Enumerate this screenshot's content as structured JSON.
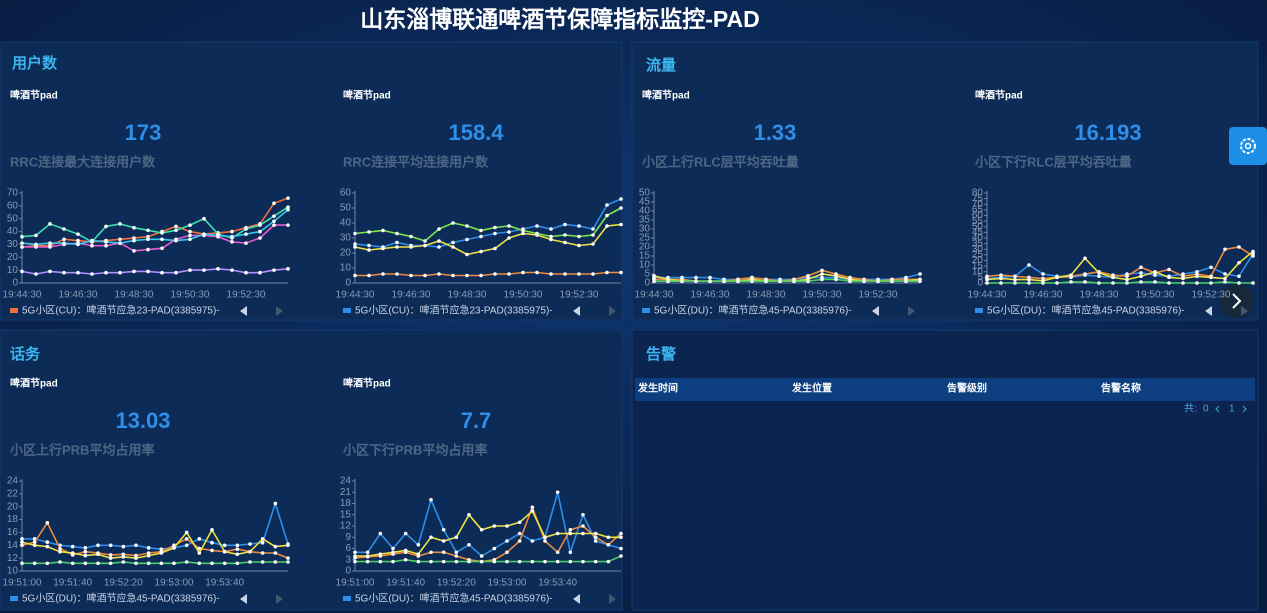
{
  "title": "山东淄博联通啤酒节保障指标监控-PAD",
  "sections": [
    "用户数",
    "流量",
    "话务",
    "告警"
  ],
  "alarm": {
    "columns": [
      "发生时间",
      "发生位置",
      "告警级别",
      "告警名称"
    ],
    "pager": {
      "total_label": "共:",
      "total": 0,
      "page": 1
    }
  },
  "chart_data": [
    {
      "type": "line",
      "subtitle": "啤酒节pad",
      "headline": 173,
      "title": "RRC连接最大连接用户数",
      "categories": [
        "19:44:30",
        null,
        null,
        null,
        "19:46:30",
        null,
        null,
        null,
        "19:48:30",
        null,
        null,
        null,
        "19:50:30",
        null,
        null,
        null,
        "19:52:30",
        null,
        null,
        null
      ],
      "ylim": [
        0,
        70
      ],
      "yticks": [
        0,
        10,
        20,
        30,
        40,
        50,
        60,
        70
      ],
      "series": [
        {
          "name": "5G小区(CU)：啤酒节应急23-PAD(3385975)-",
          "color": "#f0703a",
          "values": [
            28,
            29,
            29,
            34,
            33,
            32,
            33,
            34,
            35,
            36,
            40,
            44,
            40,
            38,
            39,
            40,
            43,
            46,
            62,
            66
          ]
        },
        {
          "color": "#3fe0b0",
          "values": [
            36,
            37,
            46,
            42,
            38,
            32,
            44,
            46,
            43,
            41,
            39,
            41,
            45,
            50,
            38,
            35,
            42,
            45,
            52,
            59
          ]
        },
        {
          "color": "#e85ad0",
          "values": [
            28,
            28,
            28,
            30,
            31,
            29,
            29,
            31,
            25,
            26,
            27,
            34,
            37,
            37,
            36,
            32,
            31,
            35,
            45,
            45
          ]
        },
        {
          "color": "#3cc8e8",
          "values": [
            31,
            30,
            31,
            31,
            30,
            33,
            32,
            31,
            33,
            34,
            34,
            33,
            34,
            38,
            37,
            36,
            38,
            40,
            48,
            57
          ]
        },
        {
          "color": "#b38cff",
          "values": [
            9,
            7,
            9,
            8,
            8,
            7,
            8,
            8,
            9,
            9,
            8,
            8,
            10,
            10,
            11,
            10,
            8,
            8,
            10,
            11
          ]
        }
      ]
    },
    {
      "type": "line",
      "subtitle": "啤酒节pad",
      "headline": 158.4,
      "title": "RRC连接平均连接用户数",
      "categories": [
        "19:44:30",
        null,
        null,
        null,
        "19:46:30",
        null,
        null,
        null,
        "19:48:30",
        null,
        null,
        null,
        "19:50:30",
        null,
        null,
        null,
        "19:52:30",
        null,
        null,
        null
      ],
      "ylim": [
        0,
        60
      ],
      "yticks": [
        0,
        10,
        20,
        30,
        40,
        50,
        60
      ],
      "series": [
        {
          "name": "5G小区(CU)：啤酒节应急23-PAD(3385975)-",
          "color": "#2e8ee8",
          "values": [
            26,
            25,
            24,
            27,
            25,
            25,
            24,
            27,
            29,
            31,
            33,
            34,
            36,
            38,
            36,
            39,
            38,
            36,
            52,
            56
          ]
        },
        {
          "color": "#7ee84a",
          "values": [
            33,
            34,
            35,
            33,
            31,
            28,
            36,
            40,
            38,
            35,
            37,
            38,
            35,
            33,
            31,
            32,
            31,
            32,
            45,
            50
          ]
        },
        {
          "color": "#f0e040",
          "values": [
            24,
            22,
            23,
            24,
            24,
            25,
            28,
            24,
            19,
            21,
            23,
            30,
            33,
            32,
            29,
            27,
            25,
            26,
            38,
            39
          ]
        },
        {
          "color": "#f08a3a",
          "values": [
            5,
            5,
            6,
            6,
            5,
            5,
            6,
            5,
            5,
            5,
            6,
            6,
            7,
            7,
            6,
            6,
            6,
            6,
            7,
            7
          ]
        }
      ]
    },
    {
      "type": "line",
      "subtitle": "啤酒节pad",
      "headline": 1.33,
      "title": "小区上行RLC层平均吞吐量",
      "categories": [
        "19:44:30",
        null,
        null,
        null,
        "19:46:30",
        null,
        null,
        null,
        "19:48:30",
        null,
        null,
        null,
        "19:50:30",
        null,
        null,
        null,
        "19:52:30",
        null,
        null,
        null
      ],
      "ylim": [
        0,
        50
      ],
      "yticks": [
        0,
        5,
        10,
        15,
        20,
        25,
        30,
        35,
        40,
        45,
        50
      ],
      "series": [
        {
          "name": "5G小区(DU)：啤酒节应急45-PAD(3385976)-",
          "color": "#2e8ee8",
          "values": [
            3,
            3,
            3,
            3,
            3,
            2,
            2,
            3,
            2,
            2,
            2,
            3,
            3,
            3,
            2,
            2,
            2,
            2,
            3,
            5
          ]
        },
        {
          "color": "#f08a3a",
          "values": [
            2,
            2,
            2,
            1,
            1,
            1,
            2,
            3,
            2,
            1,
            2,
            4,
            7,
            5,
            3,
            2,
            1,
            2,
            2,
            2
          ]
        },
        {
          "color": "#f0e040",
          "values": [
            4,
            2,
            1,
            1,
            1,
            1,
            1,
            2,
            1,
            1,
            1,
            2,
            5,
            4,
            2,
            1,
            1,
            1,
            1,
            2
          ]
        },
        {
          "color": "#4ad060",
          "values": [
            1,
            1,
            1,
            1,
            1,
            1,
            1,
            1,
            1,
            1,
            1,
            1,
            2,
            2,
            1,
            1,
            1,
            1,
            1,
            1
          ]
        }
      ]
    },
    {
      "type": "line",
      "subtitle": "啤酒节pad",
      "headline": 16.193,
      "title": "小区下行RLC层平均吞吐量",
      "categories": [
        "19:44:30",
        null,
        null,
        null,
        "19:46:30",
        null,
        null,
        null,
        "19:48:30",
        null,
        null,
        null,
        "19:50:30",
        null,
        null,
        null,
        "19:52:30",
        null,
        null,
        null
      ],
      "ylim": [
        0,
        80
      ],
      "yticks": [
        0,
        5,
        10,
        15,
        20,
        25,
        30,
        35,
        40,
        45,
        50,
        55,
        60,
        65,
        70,
        75,
        80
      ],
      "series": [
        {
          "name": "5G小区(DU)：啤酒节应急45-PAD(3385976)-",
          "color": "#2e8ee8",
          "values": [
            4,
            5,
            6,
            16,
            8,
            6,
            5,
            7,
            6,
            5,
            8,
            9,
            7,
            6,
            8,
            10,
            14,
            8,
            6,
            26
          ]
        },
        {
          "color": "#f08a3a",
          "values": [
            6,
            7,
            6,
            5,
            4,
            5,
            6,
            8,
            10,
            7,
            6,
            14,
            9,
            12,
            6,
            8,
            6,
            30,
            32,
            24
          ]
        },
        {
          "color": "#f0e040",
          "values": [
            3,
            4,
            3,
            3,
            2,
            5,
            7,
            22,
            9,
            5,
            3,
            6,
            10,
            5,
            4,
            6,
            5,
            4,
            18,
            28
          ]
        },
        {
          "color": "#4ad060",
          "values": [
            0,
            0,
            0,
            0,
            0,
            0,
            1,
            1,
            0,
            0,
            0,
            1,
            1,
            0,
            0,
            0,
            0,
            1,
            0,
            0
          ]
        }
      ]
    },
    {
      "type": "line",
      "subtitle": "啤酒节pad",
      "headline": 13.03,
      "title": "小区上行PRB平均占用率",
      "categories": [
        "19:51:00",
        null,
        null,
        null,
        "19:51:40",
        null,
        null,
        null,
        "19:52:20",
        null,
        null,
        null,
        "19:53:00",
        null,
        null,
        null,
        "19:53:40",
        null,
        null,
        null,
        null,
        null
      ],
      "ylim": [
        10,
        24
      ],
      "yticks": [
        10,
        12,
        14,
        16,
        18,
        20,
        22,
        24
      ],
      "series": [
        {
          "name": "5G小区(DU)：啤酒节应急45-PAD(3385976)-",
          "color": "#2e8ee8",
          "values": [
            15,
            15,
            14.5,
            14,
            13.8,
            13.6,
            14,
            14,
            13.8,
            14,
            13.6,
            13.4,
            13.6,
            14,
            15,
            14.4,
            14,
            14,
            14.2,
            14.4,
            20.5,
            14.2
          ]
        },
        {
          "color": "#f08a3a",
          "values": [
            14,
            14.5,
            17.5,
            13.5,
            12.5,
            13,
            12.8,
            12.5,
            12.6,
            12.4,
            12.8,
            13,
            14,
            15,
            13.5,
            13.2,
            13,
            13.4,
            13,
            12.8,
            12.8,
            12
          ]
        },
        {
          "color": "#f0e040",
          "values": [
            14.5,
            14,
            13.8,
            13,
            12.8,
            12.4,
            12.6,
            12,
            12.2,
            12,
            12.4,
            12.8,
            13.6,
            16,
            12.8,
            16.4,
            13,
            12.6,
            13,
            15,
            13.8,
            14
          ]
        },
        {
          "color": "#4ad060",
          "values": [
            11.2,
            11.2,
            11.2,
            11.4,
            11.2,
            11.2,
            11.2,
            11.2,
            11.4,
            11.2,
            11.2,
            11.2,
            11.2,
            11.4,
            11.2,
            11.2,
            11.2,
            11.2,
            11.4,
            11.4,
            11.4,
            11.4
          ]
        }
      ]
    },
    {
      "type": "line",
      "subtitle": "啤酒节pad",
      "headline": 7.7,
      "title": "小区下行PRB平均占用率",
      "categories": [
        "19:51:00",
        null,
        null,
        null,
        "19:51:40",
        null,
        null,
        null,
        "19:52:20",
        null,
        null,
        null,
        "19:53:00",
        null,
        null,
        null,
        "19:53:40",
        null,
        null,
        null,
        null,
        null
      ],
      "ylim": [
        0,
        24
      ],
      "yticks": [
        0,
        3,
        6,
        9,
        12,
        15,
        18,
        21,
        24
      ],
      "series": [
        {
          "name": "5G小区(DU)：啤酒节应急45-PAD(3385976)-",
          "color": "#2e8ee8",
          "values": [
            5,
            5,
            10,
            6,
            10,
            7,
            19,
            11,
            5,
            7,
            4,
            6,
            8,
            10,
            8,
            9,
            21,
            5,
            15,
            8,
            7,
            6
          ]
        },
        {
          "color": "#f08a3a",
          "values": [
            3.5,
            3.8,
            4,
            4.5,
            5,
            4,
            5,
            5,
            4,
            3,
            2.5,
            3,
            5,
            8,
            17,
            8,
            5,
            11,
            12,
            9,
            7,
            10
          ]
        },
        {
          "color": "#f0e040",
          "values": [
            4,
            4,
            4.5,
            5,
            5.5,
            4.5,
            9,
            8,
            9,
            15,
            11,
            12,
            12,
            13,
            16,
            9,
            10,
            10,
            10,
            10,
            9,
            9
          ]
        },
        {
          "color": "#4ad060",
          "values": [
            2.5,
            2.5,
            2.5,
            2.5,
            3,
            2.5,
            2.5,
            2.5,
            2.5,
            2.5,
            2.5,
            2.5,
            2.5,
            2.5,
            2.5,
            2.5,
            2.5,
            2.5,
            2.5,
            2.5,
            2.5,
            4
          ]
        }
      ]
    }
  ]
}
